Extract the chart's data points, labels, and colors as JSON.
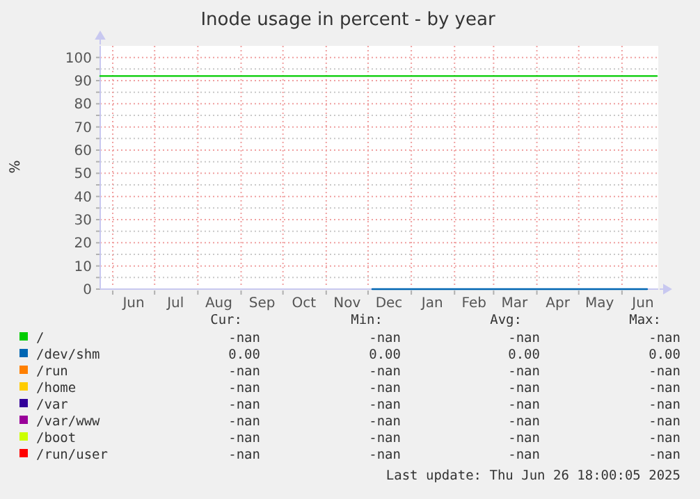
{
  "chart_data": {
    "type": "line",
    "title": "Inode usage in percent - by year",
    "ylabel": "%",
    "xlim": [
      "2024-05-23",
      "2025-06-27"
    ],
    "xticks": [
      {
        "value": "2024-06-01",
        "label": null
      },
      {
        "value": "2024-06-16",
        "label": "Jun"
      },
      {
        "value": "2024-07-01",
        "label": null
      },
      {
        "value": "2024-07-16",
        "label": "Jul"
      },
      {
        "value": "2024-08-01",
        "label": null
      },
      {
        "value": "2024-08-16",
        "label": "Aug"
      },
      {
        "value": "2024-09-01",
        "label": null
      },
      {
        "value": "2024-09-16",
        "label": "Sep"
      },
      {
        "value": "2024-10-01",
        "label": null
      },
      {
        "value": "2024-10-16",
        "label": "Oct"
      },
      {
        "value": "2024-11-01",
        "label": null
      },
      {
        "value": "2024-11-16",
        "label": "Nov"
      },
      {
        "value": "2024-12-01",
        "label": null
      },
      {
        "value": "2024-12-16",
        "label": "Dec"
      },
      {
        "value": "2025-01-01",
        "label": null
      },
      {
        "value": "2025-01-16",
        "label": "Jan"
      },
      {
        "value": "2025-02-01",
        "label": null
      },
      {
        "value": "2025-02-15",
        "label": "Feb"
      },
      {
        "value": "2025-03-01",
        "label": null
      },
      {
        "value": "2025-03-16",
        "label": "Mar"
      },
      {
        "value": "2025-04-01",
        "label": null
      },
      {
        "value": "2025-04-16",
        "label": "Apr"
      },
      {
        "value": "2025-05-01",
        "label": null
      },
      {
        "value": "2025-05-16",
        "label": "May"
      },
      {
        "value": "2025-06-01",
        "label": null
      },
      {
        "value": "2025-06-16",
        "label": "Jun"
      }
    ],
    "ylim": [
      0,
      105
    ],
    "yticks": [
      0,
      {
        "value": 5,
        "label": null
      },
      10,
      {
        "value": 15,
        "label": null
      },
      20,
      {
        "value": 25,
        "label": null
      },
      30,
      {
        "value": 35,
        "label": null
      },
      40,
      {
        "value": 45,
        "label": null
      },
      50,
      {
        "value": 55,
        "label": null
      },
      60,
      {
        "value": 65,
        "label": null
      },
      70,
      {
        "value": 75,
        "label": null
      },
      80,
      {
        "value": 85,
        "label": null
      },
      90,
      {
        "value": 95,
        "label": null
      },
      100
    ],
    "grid": true,
    "legend": "bottom",
    "series": [
      {
        "name": "/",
        "color": "#00cc00",
        "x": [
          "2024-05-23",
          "2024-08-01",
          "2024-11-01",
          "2025-02-01",
          "2025-05-01",
          "2025-06-26"
        ],
        "values": [
          92,
          92,
          92,
          92,
          92,
          92
        ]
      },
      {
        "name": "/dev/shm",
        "color": "#0066b3",
        "x": [
          "2024-12-04",
          "2025-02-01",
          "2025-04-01",
          "2025-06-19"
        ],
        "values": [
          0,
          0,
          0,
          0
        ]
      },
      {
        "name": "/run",
        "color": "#ff8000"
      },
      {
        "name": "/home",
        "color": "#ffcc00"
      },
      {
        "name": "/var",
        "color": "#330099"
      },
      {
        "name": "/var/www",
        "color": "#990099"
      },
      {
        "name": "/boot",
        "color": "#ccff00"
      },
      {
        "name": "/run/user",
        "color": "#ff0000"
      }
    ],
    "annotations": [
      "Cur:",
      "Min:",
      "Avg:",
      "Max:",
      "-nan",
      "-nan",
      "-nan",
      "-nan",
      "0.00",
      "0.00",
      "0.00",
      "0.00",
      "-nan",
      "-nan",
      "-nan",
      "-nan",
      "-nan",
      "-nan",
      "-nan",
      "-nan",
      "-nan",
      "-nan",
      "-nan",
      "-nan",
      "-nan",
      "-nan",
      "-nan",
      "-nan",
      "-nan",
      "-nan",
      "-nan",
      "-nan",
      "-nan",
      "-nan",
      "-nan",
      "-nan",
      "Last update: Thu Jun 26 18:00:05 2025"
    ]
  }
}
